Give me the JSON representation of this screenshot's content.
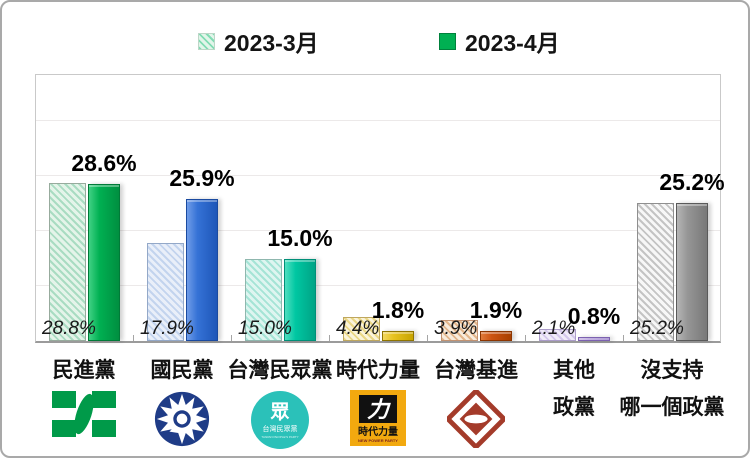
{
  "legend": {
    "items": [
      {
        "label": "2023-3月",
        "swatch": "hatched-green"
      },
      {
        "label": "2023-4月",
        "swatch": "solid-green"
      }
    ]
  },
  "chart_data": {
    "type": "bar",
    "title": "",
    "categories": [
      "民進黨",
      "國民黨",
      "台灣民眾黨",
      "時代力量",
      "台灣基進",
      "其他政黨",
      "沒支持哪一個政黨"
    ],
    "category_lines": [
      [
        "民進黨"
      ],
      [
        "國民黨"
      ],
      [
        "台灣民眾黨"
      ],
      [
        "時代力量"
      ],
      [
        "台灣基進"
      ],
      [
        "其他",
        "政黨"
      ],
      [
        "沒支持",
        "哪一個政黨"
      ]
    ],
    "series": [
      {
        "name": "2023-3月",
        "style": "hatched",
        "values": [
          28.8,
          17.9,
          15.0,
          4.4,
          3.9,
          2.1,
          25.2
        ]
      },
      {
        "name": "2023-4月",
        "style": "solid",
        "values": [
          28.6,
          25.9,
          15.0,
          1.8,
          1.9,
          0.8,
          25.2
        ]
      }
    ],
    "value_labels": {
      "march": [
        "28.8%",
        "17.9%",
        "15.0%",
        "4.4%",
        "3.9%",
        "2.1%",
        "25.2%"
      ],
      "april": [
        "28.6%",
        "25.9%",
        "15.0%",
        "1.8%",
        "1.9%",
        "0.8%",
        "25.2%"
      ]
    },
    "ylim": [
      0,
      49
    ],
    "gridlines": [
      10,
      20,
      30,
      40
    ],
    "legend_position": "top",
    "colors": [
      {
        "solid": "#00b052",
        "solid_light": "#40d184",
        "solid_dark": "#008f40",
        "border": "#007a38",
        "hatch_bg": "#e4f4e9",
        "hatch_stripe": "#a9dcc2",
        "hatch_border": "#97ab9d"
      },
      {
        "solid": "#3572d6",
        "solid_light": "#6f9ce8",
        "solid_dark": "#1e56b8",
        "border": "#1a4aa0",
        "hatch_bg": "#e9eff9",
        "hatch_stripe": "#c3d4ee",
        "hatch_border": "#93a8c8"
      },
      {
        "solid": "#00c7a2",
        "solid_light": "#4fdfc0",
        "solid_dark": "#00a385",
        "border": "#008f78",
        "hatch_bg": "#def5f0",
        "hatch_stripe": "#a5e4d6",
        "hatch_border": "#8fb7ae"
      },
      {
        "solid": "#e7c21f",
        "solid_light": "#f2d75e",
        "solid_dark": "#c7a400",
        "border": "#8f7400",
        "hatch_bg": "#faf3da",
        "hatch_stripe": "#ead786",
        "hatch_border": "#bfa75e"
      },
      {
        "solid": "#cd5412",
        "solid_light": "#e07a3a",
        "solid_dark": "#a83f00",
        "border": "#8c3500",
        "hatch_bg": "#f8ecdd",
        "hatch_stripe": "#e3b68c",
        "hatch_border": "#c29271"
      },
      {
        "solid": "#a38ad2",
        "solid_light": "#bfaade",
        "solid_dark": "#8a6cc0",
        "border": "#7c61b0",
        "hatch_bg": "#f0ecf8",
        "hatch_stripe": "#d4c8ec",
        "hatch_border": "#ab9cc9"
      },
      {
        "solid": "#969696",
        "solid_light": "#b5b5b5",
        "solid_dark": "#787878",
        "border": "#5a5a5a",
        "hatch_bg": "#f7f7f7",
        "hatch_stripe": "#c4c4c4",
        "hatch_border": "#8f8f8f"
      }
    ],
    "logos": [
      {
        "party": "民進黨",
        "type": "dpp",
        "color": "#009a49"
      },
      {
        "party": "國民黨",
        "type": "kmt",
        "color": "#1f3c87"
      },
      {
        "party": "台灣民眾黨",
        "type": "tpp",
        "color": "#2bc1b9",
        "glyph": "眾",
        "text": "台灣民眾黨",
        "subtext": "TAIWAN PEOPLE'S PARTY"
      },
      {
        "party": "時代力量",
        "type": "npp",
        "color": "#f2a90f",
        "glyph": "力",
        "text": "時代力量",
        "subtext": "NEW POWER PARTY"
      },
      {
        "party": "台灣基進",
        "type": "tsp",
        "color": "#a43b2a"
      },
      null,
      null
    ]
  }
}
